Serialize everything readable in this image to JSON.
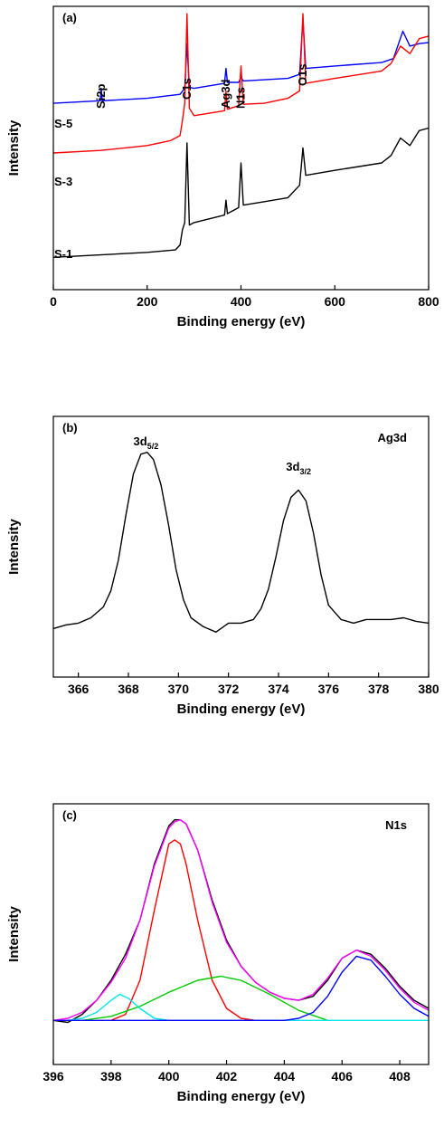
{
  "chart_data": [
    {
      "type": "line",
      "panel_label": "(a)",
      "xlabel": "Binding energy (eV)",
      "ylabel": "Intensity",
      "xlim": [
        0,
        800
      ],
      "xticks": [
        0,
        200,
        400,
        600,
        800
      ],
      "xticklabels": [
        "0",
        "200",
        "400",
        "600",
        "800"
      ],
      "peak_labels": [
        {
          "text": "Si2p",
          "x": 102
        },
        {
          "text": "C1s",
          "x": 285
        },
        {
          "text": "Ag3d",
          "x": 368
        },
        {
          "text": "N1s",
          "x": 400
        },
        {
          "text": "O1s",
          "x": 532
        }
      ],
      "series": [
        {
          "name": "S-5",
          "color": "#0000ff",
          "x": [
            0,
            100,
            102,
            104,
            200,
            270,
            280,
            285,
            290,
            300,
            365,
            368,
            371,
            395,
            400,
            405,
            500,
            525,
            532,
            538,
            600,
            700,
            725,
            745,
            760,
            780,
            800
          ],
          "y": [
            1.0,
            1.05,
            1.3,
            1.05,
            1.1,
            1.18,
            1.3,
            2.2,
            1.32,
            1.3,
            1.4,
            1.7,
            1.42,
            1.42,
            1.52,
            1.45,
            1.5,
            1.58,
            2.7,
            1.7,
            1.75,
            1.82,
            1.9,
            2.45,
            2.15,
            2.2,
            2.22
          ]
        },
        {
          "name": "S-3",
          "color": "#ff0000",
          "x": [
            0,
            100,
            200,
            250,
            270,
            275,
            280,
            285,
            290,
            300,
            365,
            368,
            371,
            395,
            400,
            405,
            450,
            500,
            525,
            532,
            538,
            600,
            700,
            720,
            740,
            760,
            780,
            800
          ],
          "y": [
            0.0,
            0.05,
            0.15,
            0.25,
            0.35,
            0.65,
            1.0,
            2.8,
            0.9,
            0.75,
            0.85,
            1.25,
            0.88,
            0.95,
            1.75,
            0.98,
            1.0,
            1.1,
            1.25,
            2.8,
            1.4,
            1.5,
            1.65,
            1.8,
            2.15,
            2.0,
            2.3,
            2.35
          ]
        },
        {
          "name": "S-1",
          "color": "#000000",
          "x": [
            0,
            100,
            200,
            260,
            270,
            275,
            280,
            285,
            290,
            300,
            365,
            368,
            371,
            395,
            400,
            405,
            450,
            500,
            525,
            532,
            538,
            600,
            700,
            720,
            740,
            760,
            780,
            800
          ],
          "y": [
            -2.1,
            -2.05,
            -2.0,
            -1.95,
            -1.85,
            -1.55,
            -1.4,
            0.2,
            -1.45,
            -1.4,
            -1.25,
            -0.95,
            -1.22,
            -1.1,
            -0.2,
            -1.05,
            -0.98,
            -0.9,
            -0.65,
            0.1,
            -0.45,
            -0.35,
            -0.2,
            -0.05,
            0.3,
            0.15,
            0.45,
            0.5
          ]
        }
      ]
    },
    {
      "type": "line",
      "panel_label": "(b)",
      "title": "Ag3d",
      "xlabel": "Binding energy (eV)",
      "ylabel": "Intensity",
      "xlim": [
        365,
        380
      ],
      "xticks": [
        366,
        368,
        370,
        372,
        374,
        376,
        378,
        380
      ],
      "xticklabels": [
        "366",
        "368",
        "370",
        "372",
        "374",
        "376",
        "378",
        "380"
      ],
      "peak_labels": [
        {
          "text": "3d",
          "sub": "5/2",
          "x": 368.7
        },
        {
          "text": "3d",
          "sub": "3/2",
          "x": 374.8
        }
      ],
      "series": [
        {
          "name": "Ag3d",
          "color": "#000000",
          "x": [
            365.0,
            365.5,
            366.0,
            366.5,
            367.0,
            367.3,
            367.6,
            367.9,
            368.2,
            368.5,
            368.75,
            369.0,
            369.3,
            369.6,
            369.9,
            370.2,
            370.5,
            371.0,
            371.5,
            372.0,
            372.5,
            373.0,
            373.3,
            373.6,
            373.9,
            374.2,
            374.5,
            374.8,
            375.1,
            375.4,
            375.7,
            376.0,
            376.5,
            377.0,
            377.5,
            378.0,
            378.5,
            379.0,
            379.5,
            380.0
          ],
          "y": [
            0.02,
            0.04,
            0.05,
            0.08,
            0.14,
            0.23,
            0.4,
            0.65,
            0.88,
            0.99,
            1.0,
            0.96,
            0.82,
            0.6,
            0.35,
            0.18,
            0.08,
            0.03,
            0.0,
            0.05,
            0.05,
            0.07,
            0.13,
            0.24,
            0.42,
            0.62,
            0.75,
            0.79,
            0.73,
            0.55,
            0.32,
            0.15,
            0.07,
            0.05,
            0.07,
            0.07,
            0.07,
            0.08,
            0.06,
            0.05
          ]
        }
      ]
    },
    {
      "type": "line",
      "panel_label": "(c)",
      "title": "N1s",
      "xlabel": "Binding energy (eV)",
      "ylabel": "Intensity",
      "xlim": [
        396,
        409
      ],
      "xticks": [
        396,
        398,
        400,
        402,
        404,
        406,
        408
      ],
      "xticklabels": [
        "396",
        "398",
        "400",
        "402",
        "404",
        "406",
        "408"
      ],
      "series": [
        {
          "color": "#000000",
          "x": [
            396.0,
            396.5,
            397.0,
            397.5,
            398.0,
            398.5,
            399.0,
            399.5,
            400.0,
            400.2,
            400.4,
            400.6,
            401.0,
            401.5,
            402.0,
            402.5,
            403.0,
            403.5,
            404.0,
            404.5,
            405.0,
            405.5,
            406.0,
            406.5,
            407.0,
            407.5,
            408.0,
            408.5,
            409.0
          ],
          "y": [
            0.0,
            -0.01,
            0.03,
            0.1,
            0.2,
            0.33,
            0.5,
            0.78,
            0.97,
            1.0,
            1.0,
            0.98,
            0.85,
            0.6,
            0.4,
            0.27,
            0.19,
            0.14,
            0.11,
            0.1,
            0.12,
            0.2,
            0.31,
            0.35,
            0.33,
            0.26,
            0.17,
            0.1,
            0.06
          ]
        },
        {
          "color": "#ff00ff",
          "x": [
            396.0,
            396.5,
            397.0,
            397.5,
            398.0,
            398.5,
            399.0,
            399.5,
            400.0,
            400.2,
            400.4,
            400.6,
            401.0,
            401.5,
            402.0,
            402.5,
            403.0,
            403.5,
            404.0,
            404.5,
            405.0,
            405.5,
            406.0,
            406.5,
            407.0,
            407.5,
            408.0,
            408.5,
            409.0
          ],
          "y": [
            0.0,
            0.01,
            0.04,
            0.1,
            0.19,
            0.31,
            0.5,
            0.77,
            0.96,
            0.99,
            1.0,
            0.98,
            0.85,
            0.59,
            0.39,
            0.27,
            0.19,
            0.14,
            0.11,
            0.1,
            0.13,
            0.21,
            0.31,
            0.35,
            0.32,
            0.25,
            0.16,
            0.09,
            0.05
          ]
        },
        {
          "color": "#ff0000",
          "x": [
            398.0,
            398.5,
            399.0,
            399.5,
            400.0,
            400.2,
            400.4,
            400.6,
            401.0,
            401.5,
            402.0,
            402.5,
            403.0
          ],
          "y": [
            0.0,
            0.03,
            0.2,
            0.55,
            0.88,
            0.9,
            0.88,
            0.78,
            0.5,
            0.2,
            0.06,
            0.01,
            0.0
          ]
        },
        {
          "color": "#00cc00",
          "x": [
            397.0,
            398.0,
            399.0,
            400.0,
            401.0,
            401.8,
            402.5,
            403.5,
            404.5,
            405.5
          ],
          "y": [
            0.0,
            0.02,
            0.07,
            0.14,
            0.2,
            0.22,
            0.2,
            0.13,
            0.05,
            0.0
          ]
        },
        {
          "color": "#00e5e5",
          "x": [
            396.5,
            397.0,
            397.5,
            398.0,
            398.3,
            398.6,
            399.0,
            399.5,
            400.0,
            404.0,
            409.0
          ],
          "y": [
            0.0,
            0.01,
            0.04,
            0.1,
            0.13,
            0.11,
            0.06,
            0.01,
            0.0,
            0.0,
            0.0
          ]
        },
        {
          "color": "#0000ff",
          "x": [
            396.0,
            404.0,
            404.5,
            405.0,
            405.5,
            406.0,
            406.5,
            407.0,
            407.5,
            408.0,
            408.5,
            409.0
          ],
          "y": [
            0.0,
            0.0,
            0.01,
            0.04,
            0.12,
            0.24,
            0.32,
            0.3,
            0.22,
            0.13,
            0.06,
            0.02
          ]
        }
      ]
    }
  ]
}
